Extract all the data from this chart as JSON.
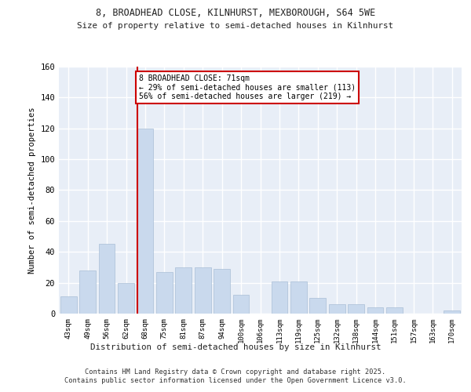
{
  "title1": "8, BROADHEAD CLOSE, KILNHURST, MEXBOROUGH, S64 5WE",
  "title2": "Size of property relative to semi-detached houses in Kilnhurst",
  "xlabel": "Distribution of semi-detached houses by size in Kilnhurst",
  "ylabel": "Number of semi-detached properties",
  "categories": [
    "43sqm",
    "49sqm",
    "56sqm",
    "62sqm",
    "68sqm",
    "75sqm",
    "81sqm",
    "87sqm",
    "94sqm",
    "100sqm",
    "106sqm",
    "113sqm",
    "119sqm",
    "125sqm",
    "132sqm",
    "138sqm",
    "144sqm",
    "151sqm",
    "157sqm",
    "163sqm",
    "170sqm"
  ],
  "values": [
    11,
    28,
    45,
    20,
    120,
    27,
    30,
    30,
    29,
    12,
    0,
    21,
    21,
    10,
    6,
    6,
    4,
    4,
    0,
    0,
    2
  ],
  "bar_color": "#c9d9ed",
  "bar_edgecolor": "#aabfd6",
  "highlight_index": 4,
  "property_size": 71,
  "pct_smaller": 29,
  "n_smaller": 113,
  "pct_larger": 56,
  "n_larger": 219,
  "annotation_text": "8 BROADHEAD CLOSE: 71sqm\n← 29% of semi-detached houses are smaller (113)\n56% of semi-detached houses are larger (219) →",
  "annotation_box_color": "#ffffff",
  "annotation_box_edgecolor": "#cc0000",
  "red_line_color": "#cc0000",
  "ylim": [
    0,
    160
  ],
  "yticks": [
    0,
    20,
    40,
    60,
    80,
    100,
    120,
    140,
    160
  ],
  "footer": "Contains HM Land Registry data © Crown copyright and database right 2025.\nContains public sector information licensed under the Open Government Licence v3.0.",
  "bg_color": "#ffffff",
  "plot_bg_color": "#e8eef7",
  "grid_color": "#ffffff"
}
